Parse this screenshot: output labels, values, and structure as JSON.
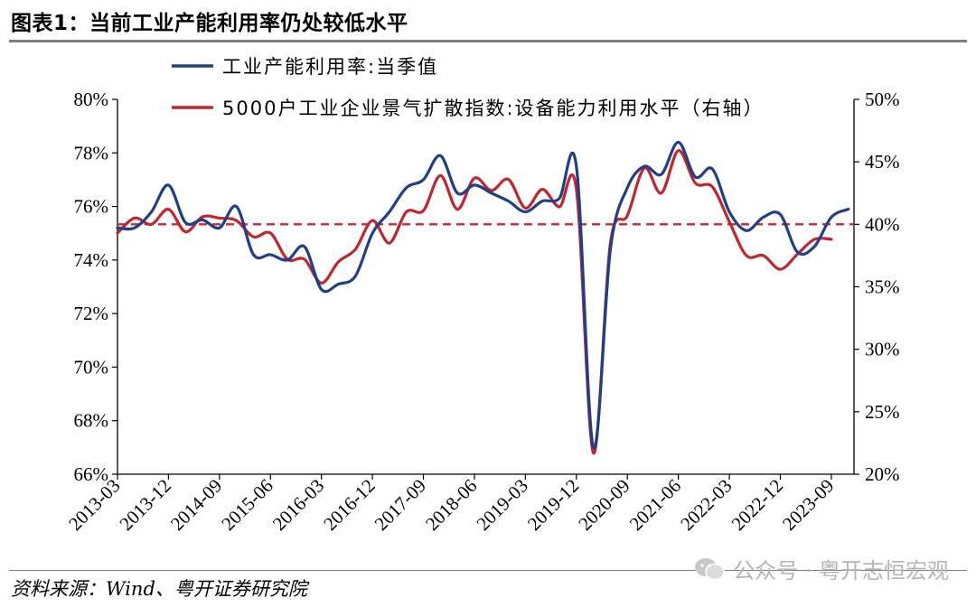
{
  "header": {
    "title": "图表1：当前工业产能利用率仍处较低水平"
  },
  "footer": {
    "source": "资料来源：Wind、粤开证券研究院",
    "watermark": "公众号 · 粤开志恒宏观"
  },
  "colors": {
    "series1": "#1f3f8a",
    "series2": "#c0262d",
    "reference": "#d0262d"
  },
  "chart_data": {
    "type": "line",
    "title": "图表1：当前工业产能利用率仍处较低水平",
    "x_ticks": [
      "2013-03",
      "2013-12",
      "2014-09",
      "2015-06",
      "2016-03",
      "2016-12",
      "2017-09",
      "2018-06",
      "2019-03",
      "2019-12",
      "2020-09",
      "2021-06",
      "2022-03",
      "2022-12",
      "2023-09"
    ],
    "y_left": {
      "ticks": [
        "66%",
        "68%",
        "70%",
        "72%",
        "74%",
        "76%",
        "78%",
        "80%"
      ],
      "min": 66,
      "max": 80
    },
    "y_right": {
      "ticks": [
        "20%",
        "25%",
        "30%",
        "35%",
        "40%",
        "45%",
        "50%"
      ],
      "min": 20,
      "max": 50
    },
    "reference_line": {
      "axis": "right",
      "value": 40,
      "style": "dashed"
    },
    "series": [
      {
        "name": "工业产能利用率:当季值",
        "axis": "left",
        "x": [
          "2013-03",
          "2013-06",
          "2013-09",
          "2013-12",
          "2014-03",
          "2014-06",
          "2014-09",
          "2014-12",
          "2015-03",
          "2015-06",
          "2015-09",
          "2015-12",
          "2016-03",
          "2016-06",
          "2016-09",
          "2016-12",
          "2017-03",
          "2017-06",
          "2017-09",
          "2017-12",
          "2018-03",
          "2018-06",
          "2018-09",
          "2018-12",
          "2019-03",
          "2019-06",
          "2019-09",
          "2019-12",
          "2020-03",
          "2020-06",
          "2020-09",
          "2020-12",
          "2021-03",
          "2021-06",
          "2021-09",
          "2021-12",
          "2022-03",
          "2022-06",
          "2022-09",
          "2022-12",
          "2023-03",
          "2023-06",
          "2023-09",
          "2023-12"
        ],
        "values": [
          75.2,
          75.2,
          75.8,
          76.8,
          75.4,
          75.5,
          75.2,
          76.0,
          74.2,
          74.2,
          74.0,
          74.5,
          72.9,
          73.1,
          73.4,
          75.0,
          75.8,
          76.7,
          77.0,
          77.9,
          76.5,
          76.8,
          76.5,
          76.2,
          75.8,
          76.2,
          76.3,
          77.5,
          67.0,
          74.4,
          76.7,
          77.5,
          77.2,
          78.4,
          77.1,
          77.4,
          75.8,
          75.1,
          75.6,
          75.7,
          74.3,
          74.5,
          75.6,
          75.9
        ]
      },
      {
        "name": "5000户工业企业景气扩散指数:设备能力利用水平（右轴）",
        "axis": "right",
        "x": [
          "2013-03",
          "2013-06",
          "2013-09",
          "2013-12",
          "2014-03",
          "2014-06",
          "2014-09",
          "2014-12",
          "2015-03",
          "2015-06",
          "2015-09",
          "2015-12",
          "2016-03",
          "2016-06",
          "2016-09",
          "2016-12",
          "2017-03",
          "2017-06",
          "2017-09",
          "2017-12",
          "2018-03",
          "2018-06",
          "2018-09",
          "2018-12",
          "2019-03",
          "2019-06",
          "2019-09",
          "2019-12",
          "2020-03",
          "2020-06",
          "2020-09",
          "2020-12",
          "2021-03",
          "2021-06",
          "2021-09",
          "2021-12",
          "2022-03",
          "2022-06",
          "2022-09",
          "2022-12",
          "2023-03",
          "2023-06",
          "2023-09"
        ],
        "values": [
          39.3,
          40.5,
          40.0,
          41.2,
          39.4,
          40.6,
          40.5,
          40.3,
          39.0,
          39.3,
          37.2,
          37.2,
          35.3,
          37.0,
          38.0,
          40.3,
          38.5,
          41.0,
          41.1,
          43.9,
          41.2,
          43.7,
          42.7,
          43.6,
          41.3,
          42.8,
          41.4,
          42.8,
          21.7,
          38.5,
          40.7,
          44.5,
          42.5,
          45.9,
          43.3,
          43.0,
          40.2,
          37.5,
          37.5,
          36.4,
          37.6,
          38.8,
          38.8
        ]
      }
    ]
  }
}
